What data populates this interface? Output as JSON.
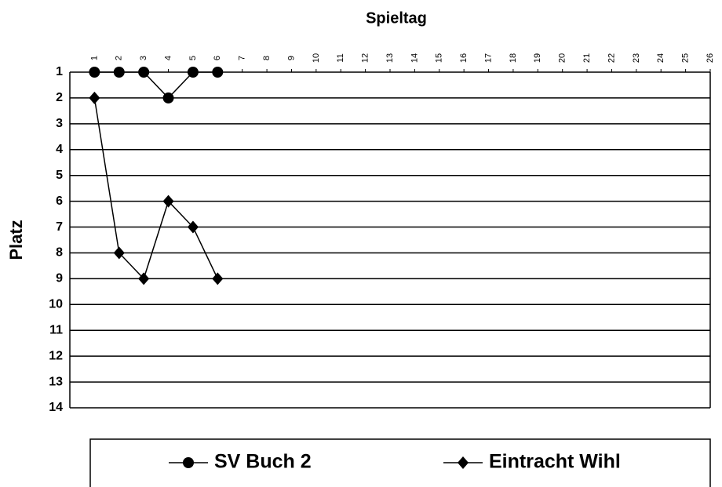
{
  "chart_data": {
    "type": "line",
    "title": "Spieltag",
    "y_label": "Platz",
    "x": [
      1,
      2,
      3,
      4,
      5,
      6
    ],
    "series": [
      {
        "name": "SV Buch 2",
        "color": "#000000",
        "marker": "circle",
        "values": [
          1,
          1,
          1,
          2,
          1,
          1
        ]
      },
      {
        "name": "Eintracht Wihl",
        "color": "#000000",
        "marker": "diamond",
        "values": [
          2,
          8,
          9,
          6,
          7,
          9
        ]
      }
    ],
    "xlim": [
      0,
      26
    ],
    "xticks": [
      1,
      2,
      3,
      4,
      5,
      6,
      7,
      8,
      9,
      10,
      11,
      12,
      13,
      14,
      15,
      16,
      17,
      18,
      19,
      20,
      21,
      22,
      23,
      24,
      25,
      26
    ],
    "ylim": [
      1,
      14
    ],
    "yticks": [
      1,
      2,
      3,
      4,
      5,
      6,
      7,
      8,
      9,
      10,
      11,
      12,
      13,
      14
    ],
    "y_inverted": true,
    "grid": true,
    "legend": "bottom"
  }
}
